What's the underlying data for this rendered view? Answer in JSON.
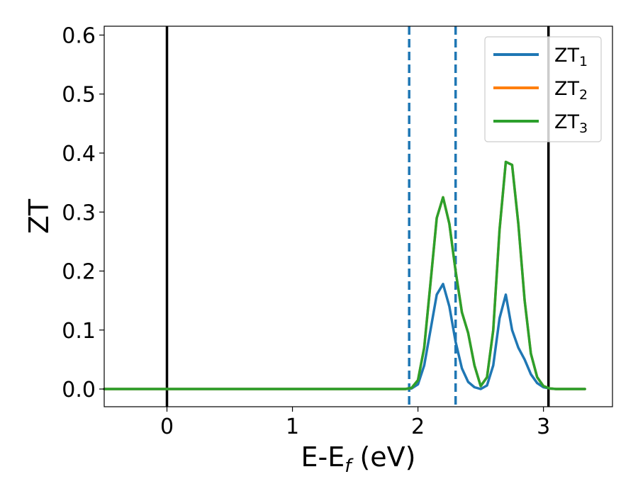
{
  "chart_data": {
    "type": "line",
    "xlabel_main": "E-E",
    "xlabel_sub": "f",
    "xlabel_unit": " (eV)",
    "ylabel": "ZT",
    "xlim": [
      -0.5,
      3.55
    ],
    "ylim": [
      -0.03,
      0.615
    ],
    "xticks": [
      0,
      1,
      2,
      3
    ],
    "xtick_labels": [
      "0",
      "1",
      "2",
      "3"
    ],
    "yticks": [
      0.0,
      0.1,
      0.2,
      0.3,
      0.4,
      0.5,
      0.6
    ],
    "ytick_labels": [
      "0.0",
      "0.1",
      "0.2",
      "0.3",
      "0.4",
      "0.5",
      "0.6"
    ],
    "grid": false,
    "legend_placement": "top-right",
    "vertical_lines": [
      {
        "x": 0.0,
        "style": "solid",
        "color": "#000000"
      },
      {
        "x": 3.04,
        "style": "solid",
        "color": "#000000"
      },
      {
        "x": 1.93,
        "style": "dashed",
        "color": "#1f77b4"
      },
      {
        "x": 2.3,
        "style": "dashed",
        "color": "#1f77b4"
      }
    ],
    "x": [
      -0.5,
      1.8,
      1.9,
      1.95,
      2.0,
      2.05,
      2.1,
      2.15,
      2.2,
      2.25,
      2.3,
      2.35,
      2.4,
      2.45,
      2.5,
      2.55,
      2.6,
      2.65,
      2.7,
      2.75,
      2.8,
      2.85,
      2.9,
      2.95,
      3.0,
      3.05,
      3.1,
      3.2,
      3.33
    ],
    "series": [
      {
        "name": "ZT",
        "name_sub": "1",
        "color": "#1f77b4",
        "values": [
          0.0,
          0.0,
          0.0,
          0.001,
          0.008,
          0.04,
          0.1,
          0.16,
          0.178,
          0.14,
          0.08,
          0.035,
          0.012,
          0.003,
          0.0,
          0.006,
          0.04,
          0.12,
          0.16,
          0.1,
          0.07,
          0.05,
          0.025,
          0.01,
          0.003,
          0.001,
          0.0,
          0.0,
          0.0
        ]
      },
      {
        "name": "ZT",
        "name_sub": "2",
        "color": "#ff7f0e",
        "values": [
          0.0,
          0.0,
          0.0,
          0.002,
          0.015,
          0.07,
          0.18,
          0.29,
          0.325,
          0.28,
          0.2,
          0.13,
          0.095,
          0.04,
          0.005,
          0.02,
          0.1,
          0.27,
          0.385,
          0.38,
          0.28,
          0.15,
          0.06,
          0.02,
          0.005,
          0.001,
          0.0,
          0.0,
          0.0
        ]
      },
      {
        "name": "ZT",
        "name_sub": "3",
        "color": "#2ca02c",
        "values": [
          0.0,
          0.0,
          0.0,
          0.002,
          0.015,
          0.07,
          0.18,
          0.29,
          0.325,
          0.28,
          0.2,
          0.13,
          0.095,
          0.04,
          0.005,
          0.02,
          0.1,
          0.27,
          0.385,
          0.38,
          0.28,
          0.15,
          0.06,
          0.02,
          0.005,
          0.001,
          0.0,
          0.0,
          0.0
        ]
      }
    ]
  }
}
